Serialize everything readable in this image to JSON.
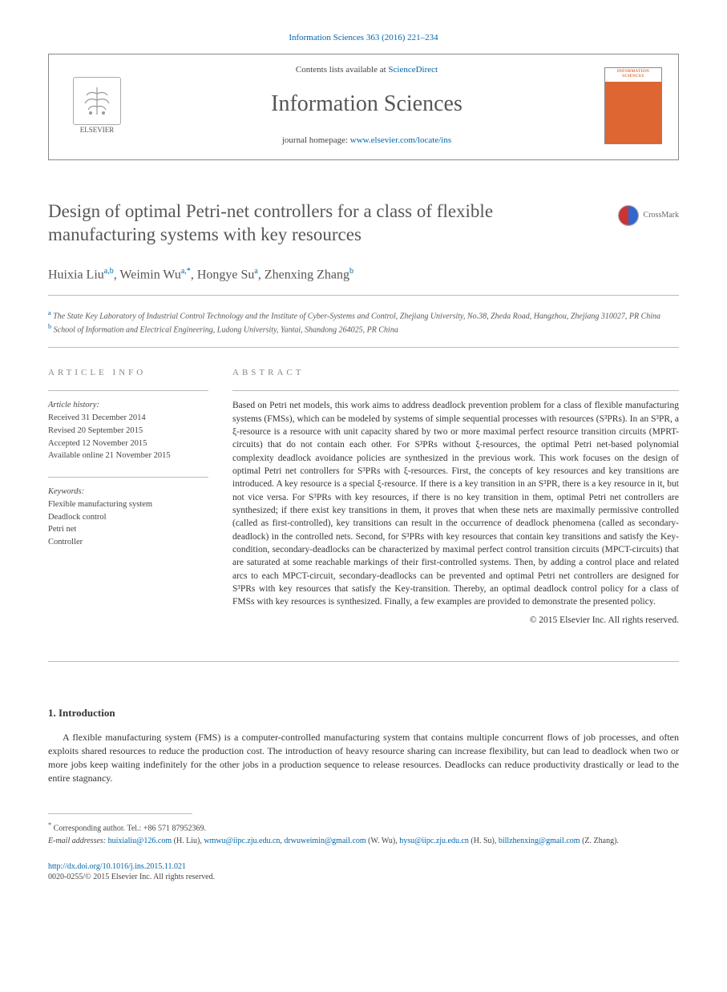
{
  "top_citation": "Information Sciences 363 (2016) 221–234",
  "header": {
    "contents_pre": "Contents lists available at ",
    "contents_link": "ScienceDirect",
    "journal_name": "Information Sciences",
    "homepage_pre": "journal homepage: ",
    "homepage_link": "www.elsevier.com/locate/ins",
    "publisher_name": "ELSEVIER",
    "cover_label": "INFORMATION SCIENCES"
  },
  "title": "Design of optimal Petri-net controllers for a class of flexible manufacturing systems with key resources",
  "crossmark_label": "CrossMark",
  "authors_html": "Huixia Liu<sup>a,b</sup>, Weimin Wu<sup>a,*</sup>, Hongye Su<sup>a</sup>, Zhenxing Zhang<sup>b</sup>",
  "affiliations": {
    "a": "The State Key Laboratory of Industrial Control Technology and the Institute of Cyber-Systems and Control, Zhejiang University, No.38, Zheda Road, Hangzhou, Zhejiang 310027, PR China",
    "b": "School of Information and Electrical Engineering, Ludong University, Yantai, Shandong 264025, PR China"
  },
  "info_label": "article info",
  "abstract_label": "abstract",
  "history": {
    "head": "Article history:",
    "received": "Received 31 December 2014",
    "revised": "Revised 20 September 2015",
    "accepted": "Accepted 12 November 2015",
    "online": "Available online 21 November 2015"
  },
  "keywords": {
    "head": "Keywords:",
    "items": [
      "Flexible manufacturing system",
      "Deadlock control",
      "Petri net",
      "Controller"
    ]
  },
  "abstract": "Based on Petri net models, this work aims to address deadlock prevention problem for a class of flexible manufacturing systems (FMSs), which can be modeled by systems of simple sequential processes with resources (S³PRs). In an S³PR, a ξ-resource is a resource with unit capacity shared by two or more maximal perfect resource transition circuits (MPRT-circuits) that do not contain each other. For S³PRs without ξ-resources, the optimal Petri net-based polynomial complexity deadlock avoidance policies are synthesized in the previous work. This work focuses on the design of optimal Petri net controllers for S³PRs with ξ-resources. First, the concepts of key resources and key transitions are introduced. A key resource is a special ξ-resource. If there is a key transition in an S³PR, there is a key resource in it, but not vice versa. For S³PRs with key resources, if there is no key transition in them, optimal Petri net controllers are synthesized; if there exist key transitions in them, it proves that when these nets are maximally permissive controlled (called as first-controlled), key transitions can result in the occurrence of deadlock phenomena (called as secondary-deadlock) in the controlled nets. Second, for S³PRs with key resources that contain key transitions and satisfy the Key-condition, secondary-deadlocks can be characterized by maximal perfect control transition circuits (MPCT-circuits) that are saturated at some reachable markings of their first-controlled systems. Then, by adding a control place and related arcs to each MPCT-circuit, secondary-deadlocks can be prevented and optimal Petri net controllers are designed for S³PRs with key resources that satisfy the Key-transition. Thereby, an optimal deadlock control policy for a class of FMSs with key resources is synthesized. Finally, a few examples are provided to demonstrate the presented policy.",
  "copyright": "© 2015 Elsevier Inc. All rights reserved.",
  "intro_head": "1. Introduction",
  "intro_text": "A flexible manufacturing system (FMS) is a computer-controlled manufacturing system that contains multiple concurrent flows of job processes, and often exploits shared resources to reduce the production cost. The introduction of heavy resource sharing can increase flexibility, but can lead to deadlock when two or more jobs keep waiting indefinitely for the other jobs in a production sequence to release resources. Deadlocks can reduce productivity drastically or lead to the entire stagnancy.",
  "footnotes": {
    "corr": "Corresponding author. Tel.: +86 571 87952369.",
    "email_label": "E-mail addresses:",
    "emails": [
      {
        "addr": "huixialiu@126.com",
        "who": "(H. Liu)"
      },
      {
        "addr": "wmwu@iipc.zju.edu.cn",
        "who": ""
      },
      {
        "addr": "drwuweimin@gmail.com",
        "who": "(W. Wu)"
      },
      {
        "addr": "hysu@iipc.zju.edu.cn",
        "who": "(H. Su)"
      },
      {
        "addr": "billzhenxing@gmail.com",
        "who": "(Z. Zhang)"
      }
    ]
  },
  "doi": {
    "link": "http://dx.doi.org/10.1016/j.ins.2015.11.021",
    "issn_line": "0020-0255/© 2015 Elsevier Inc. All rights reserved."
  },
  "colors": {
    "link": "#0066aa",
    "title_gray": "#575757",
    "rule": "#bbbbbb",
    "cover_orange": "#dd6633"
  }
}
